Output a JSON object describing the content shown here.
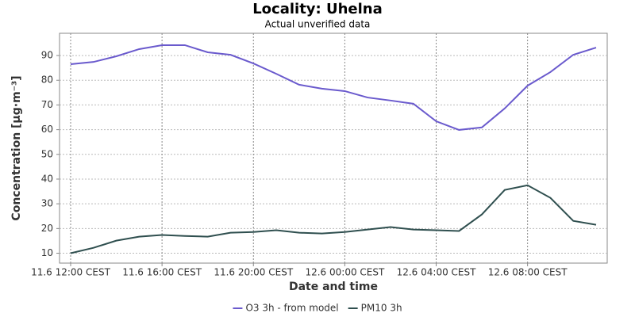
{
  "chart_data": {
    "type": "line",
    "title": "Locality: Uhelna",
    "subtitle": "Actual unverified data",
    "x_label": "Date and time",
    "y_label": "Concentration [µg·m⁻³]",
    "categories": [
      "11.6 12:00 CEST",
      null,
      null,
      null,
      "11.6 16:00 CEST",
      null,
      null,
      null,
      "11.6 20:00 CEST",
      null,
      null,
      null,
      "12.6 00:00 CEST",
      null,
      null,
      null,
      "12.6 04:00 CEST",
      null,
      null,
      null,
      "12.6 08:00 CEST",
      null,
      null,
      null
    ],
    "series": [
      {
        "name": "O3 3h - from model",
        "color": "#6a5acd",
        "values": [
          86.5,
          87.4,
          89.7,
          92.6,
          94.2,
          94.2,
          91.3,
          90.3,
          86.8,
          82.6,
          78.2,
          76.6,
          75.6,
          73.0,
          71.8,
          70.5,
          63.4,
          59.9,
          60.9,
          68.6,
          77.8,
          83.3,
          90.3,
          93.2
        ]
      },
      {
        "name": "PM10 3h",
        "color": "#2f4f4f",
        "values": [
          10.0,
          12.2,
          15.1,
          16.7,
          17.4,
          17.0,
          16.7,
          18.3,
          18.6,
          19.3,
          18.3,
          18.0,
          18.6,
          19.6,
          20.6,
          19.6,
          19.3,
          19.0,
          25.7,
          35.6,
          37.5,
          32.4,
          23.1,
          21.5
        ]
      }
    ],
    "ylim": [
      6,
      99
    ],
    "yticks": [
      10,
      20,
      30,
      40,
      50,
      60,
      70,
      80,
      90
    ],
    "grid": true,
    "legend": "bottom"
  }
}
